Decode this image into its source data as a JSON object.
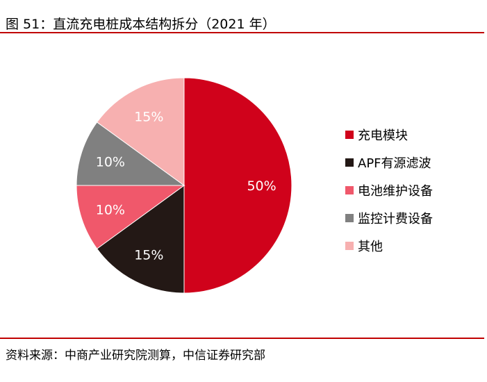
{
  "title": "图 51：直流充电桩成本结构拆分（2021 年）",
  "source": "资料来源：中商产业研究院测算，中信证券研究部",
  "colors": {
    "rule": "#c00000",
    "slices": [
      "#d0021b",
      "#231815",
      "#f0586b",
      "#808080",
      "#f7b0b0"
    ],
    "label_on_light": "#ffffff",
    "label_on_dark": "#ffffff"
  },
  "chart_data": {
    "type": "pie",
    "categories": [
      "充电模块",
      "APF有源滤波",
      "电池维护设备",
      "监控计费设备",
      "其他"
    ],
    "values": [
      50,
      15,
      10,
      10,
      15
    ],
    "labels": [
      "50%",
      "15%",
      "10%",
      "10%",
      "15%"
    ],
    "start_angle": "12 o'clock",
    "direction": "clockwise",
    "legend_position": "right"
  }
}
